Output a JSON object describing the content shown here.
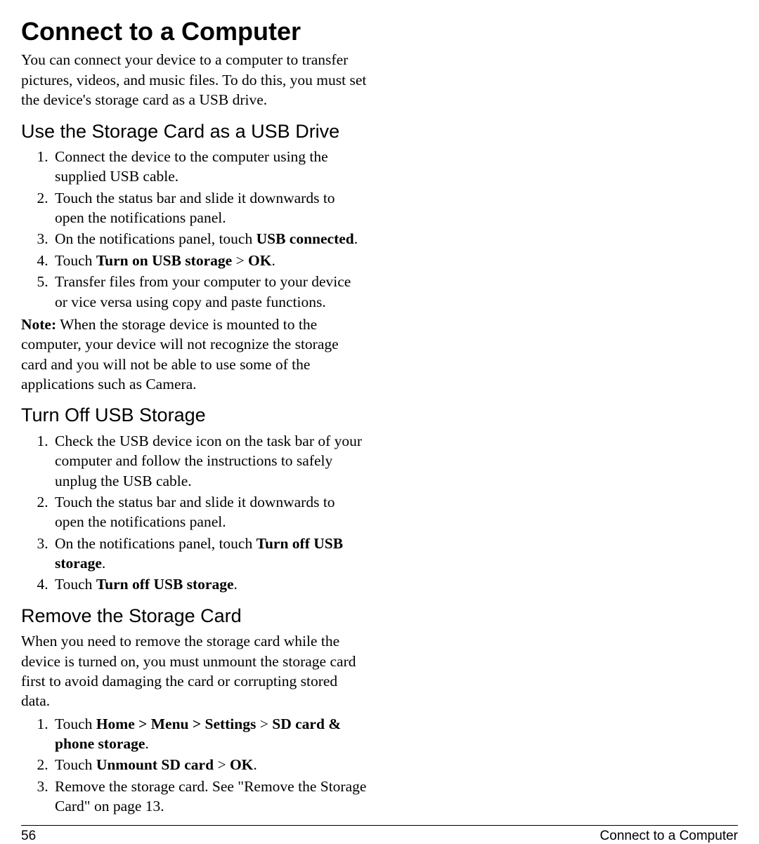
{
  "title": "Connect to a Computer",
  "intro": "You can connect your device to a computer to transfer pictures, videos, and music files. To do this, you must set the device's storage card as a USB drive.",
  "sec1": {
    "heading": "Use the Storage Card as a USB Drive",
    "li1": "Connect the device to the computer using the supplied USB cable.",
    "li2": "Touch the status bar and slide it downwards to open the notifications panel.",
    "li3a": "On the notifications panel, touch ",
    "li3b": "USB connected",
    "li3c": ".",
    "li4a": "Touch ",
    "li4b": "Turn on USB storage",
    "li4c": " > ",
    "li4d": "OK",
    "li4e": ".",
    "li5": "Transfer files from your computer to your device or vice versa using copy and paste functions.",
    "note_label": "Note:",
    "note_text": " When the storage device is mounted to the computer, your device will not recognize the storage card and you will not be able to use some of the applications such as Camera."
  },
  "sec2": {
    "heading": "Turn Off USB Storage",
    "li1": "Check the USB device icon on the task bar of your computer and follow the instructions to safely unplug the USB cable.",
    "li2": "Touch the status bar and slide it downwards to open the notifications panel.",
    "li3a": "On the notifications panel, touch ",
    "li3b": "Turn off USB storage",
    "li3c": ".",
    "li4a": "Touch ",
    "li4b": "Turn off USB storage",
    "li4c": "."
  },
  "sec3": {
    "heading": "Remove the Storage Card",
    "intro": "When you need to remove the storage card while the device is turned on, you must unmount the storage card first to avoid damaging the card or corrupting stored data.",
    "li1a": "Touch ",
    "li1b": "Home > Menu > Settings",
    "li1c": " > ",
    "li1d": "SD card & phone storage",
    "li1e": ".",
    "li2a": "Touch ",
    "li2b": "Unmount SD card",
    "li2c": " > ",
    "li2d": "OK",
    "li2e": ".",
    "li3": "Remove the storage card. See \"Remove the Storage Card\" on page 13."
  },
  "footer": {
    "page": "56",
    "section": "Connect to a Computer"
  }
}
